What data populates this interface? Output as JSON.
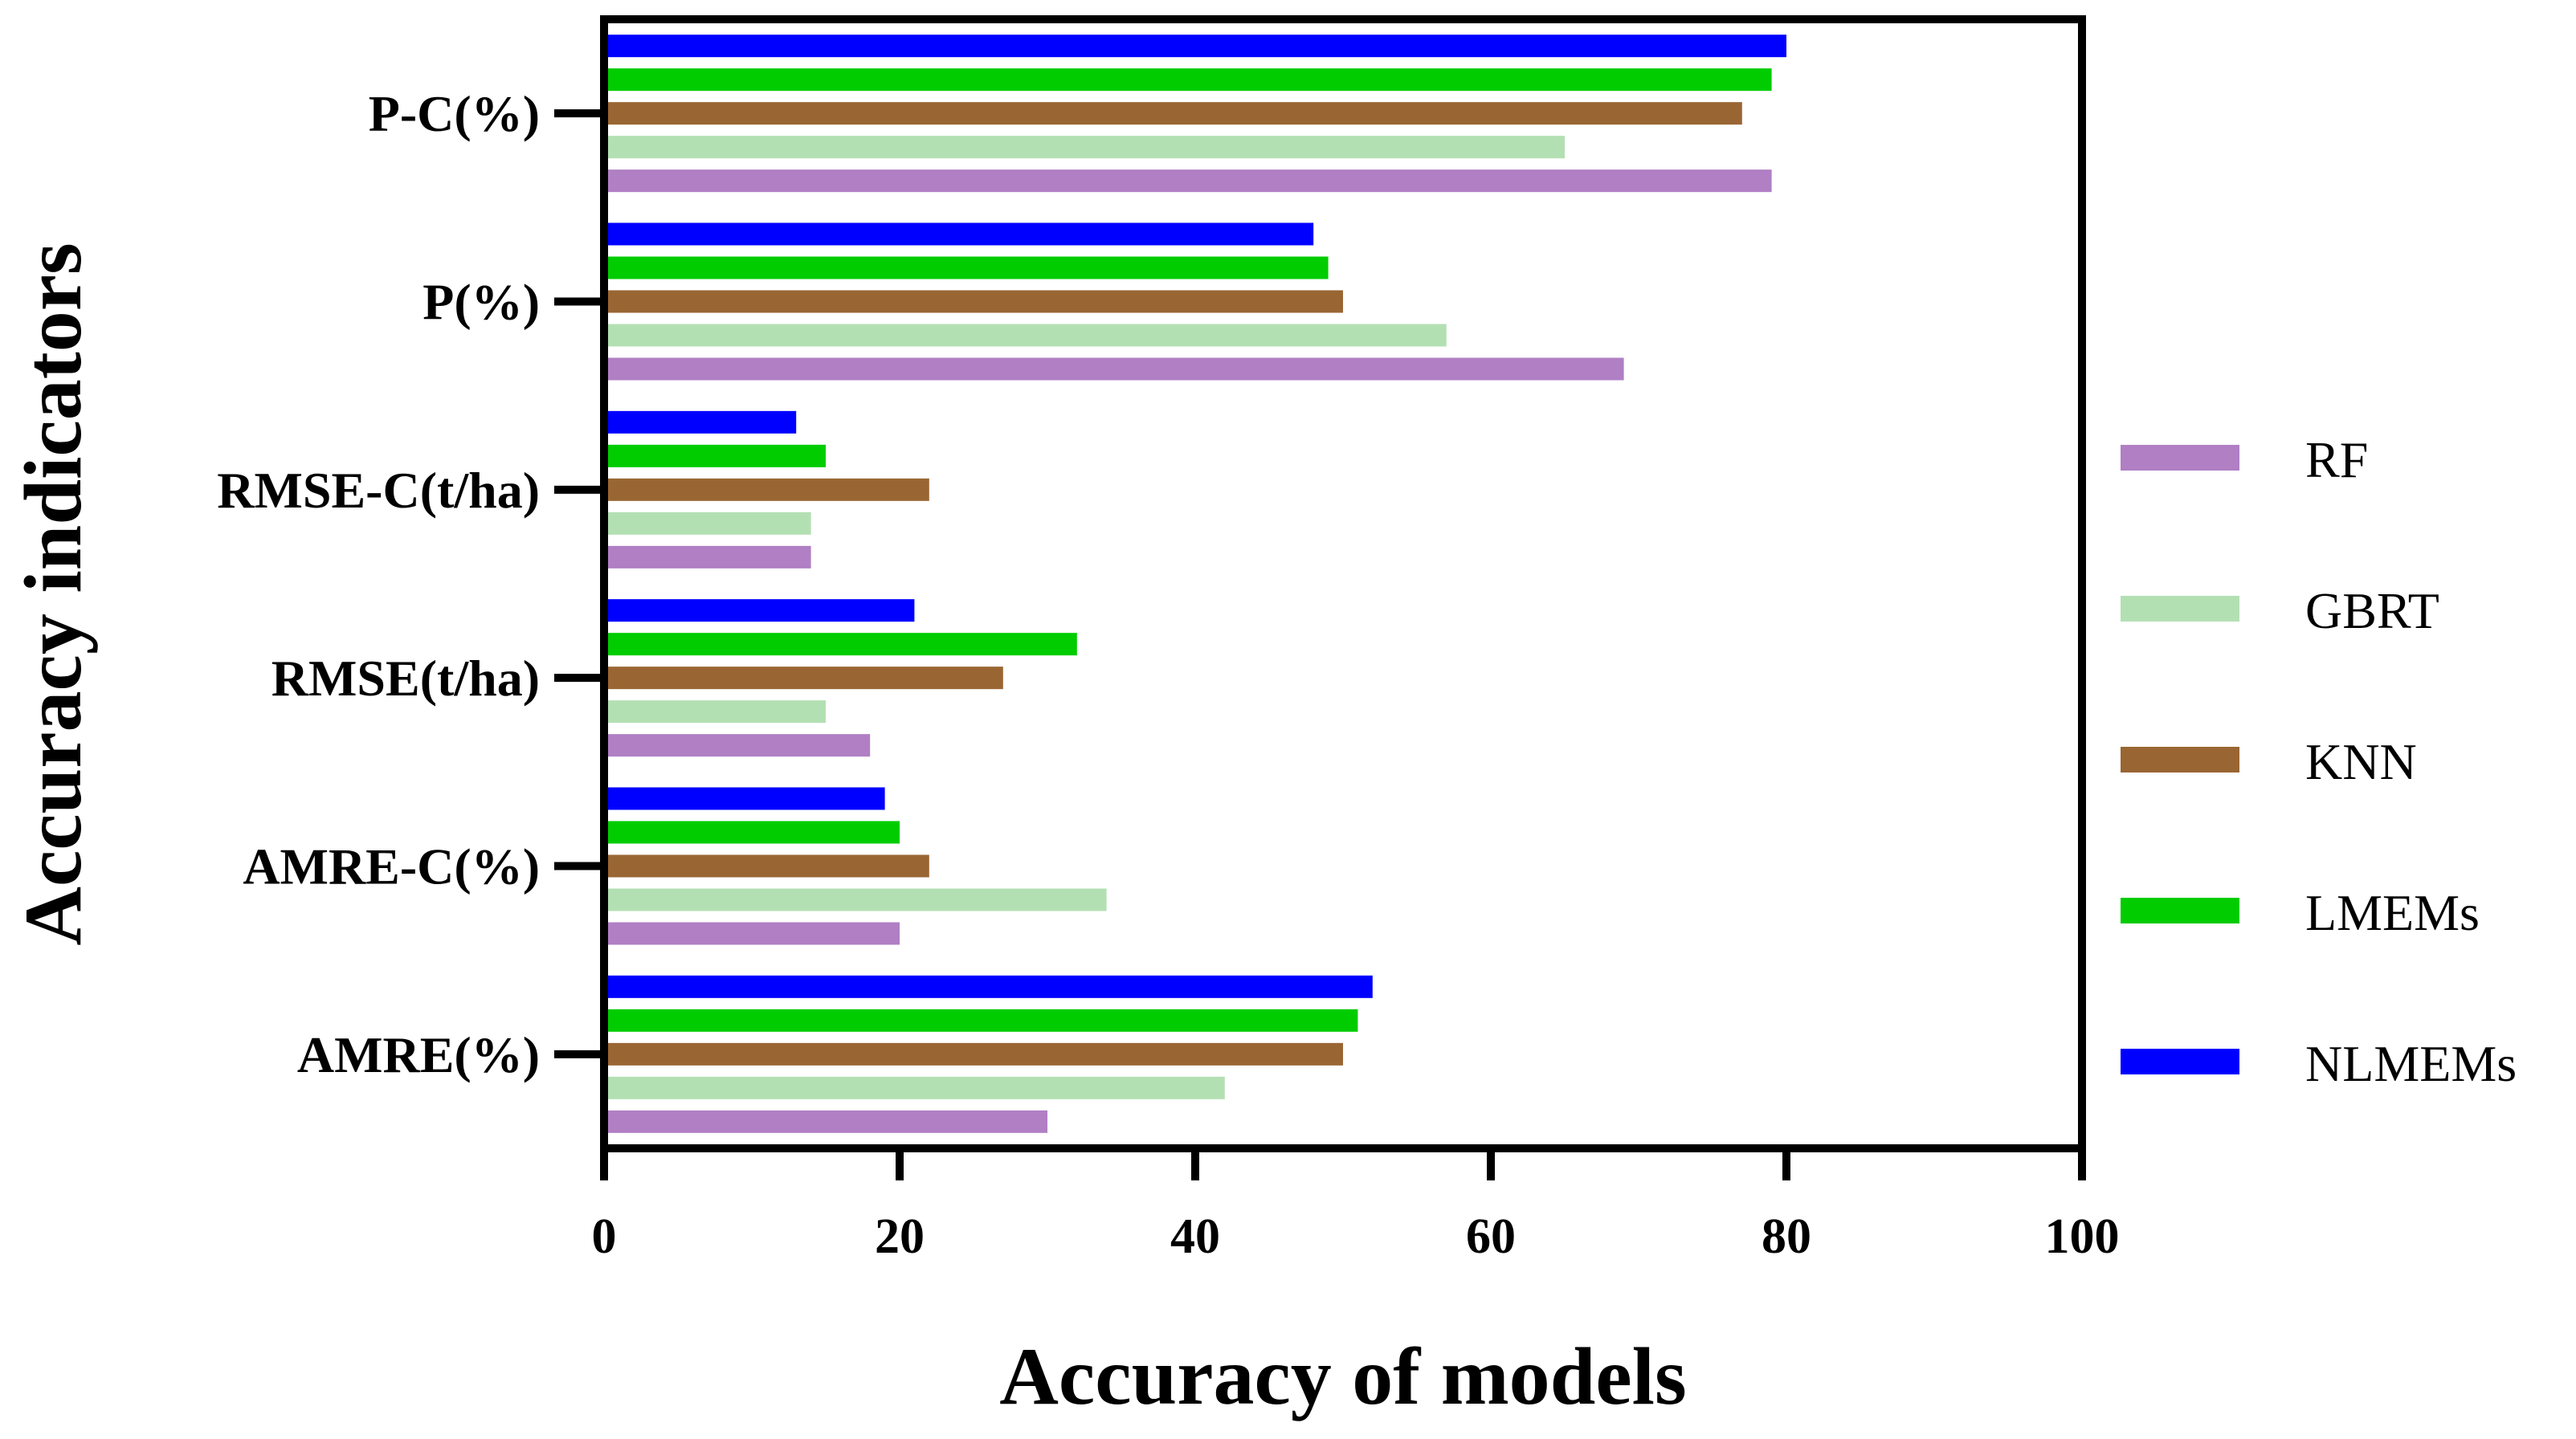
{
  "chart_data": {
    "type": "bar",
    "orientation": "horizontal",
    "xlabel": "Accuracy of models",
    "ylabel": "Accuracy indicators",
    "xlim": [
      0,
      100
    ],
    "xticks": [
      "0",
      "20",
      "40",
      "60",
      "80",
      "100"
    ],
    "grid": false,
    "legend_position": "right",
    "categories": [
      "P-C(%)",
      "P(%)",
      "RMSE-C(t/ha)",
      "RMSE(t/ha)",
      "AMRE-C(%)",
      "AMRE(%)"
    ],
    "series": [
      {
        "name": "RF",
        "color": "#b07fc4",
        "values": [
          79,
          69,
          14,
          18,
          20,
          30
        ]
      },
      {
        "name": "GBRT",
        "color": "#b3e0b3",
        "values": [
          65,
          57,
          14,
          15,
          34,
          42
        ]
      },
      {
        "name": "KNN",
        "color": "#996633",
        "values": [
          77,
          50,
          22,
          27,
          22,
          50
        ]
      },
      {
        "name": "LMEMs",
        "color": "#00cc00",
        "values": [
          79,
          49,
          15,
          32,
          20,
          51
        ]
      },
      {
        "name": "NLMEMs",
        "color": "#0000ff",
        "values": [
          80,
          48,
          13,
          21,
          19,
          52
        ]
      }
    ]
  }
}
